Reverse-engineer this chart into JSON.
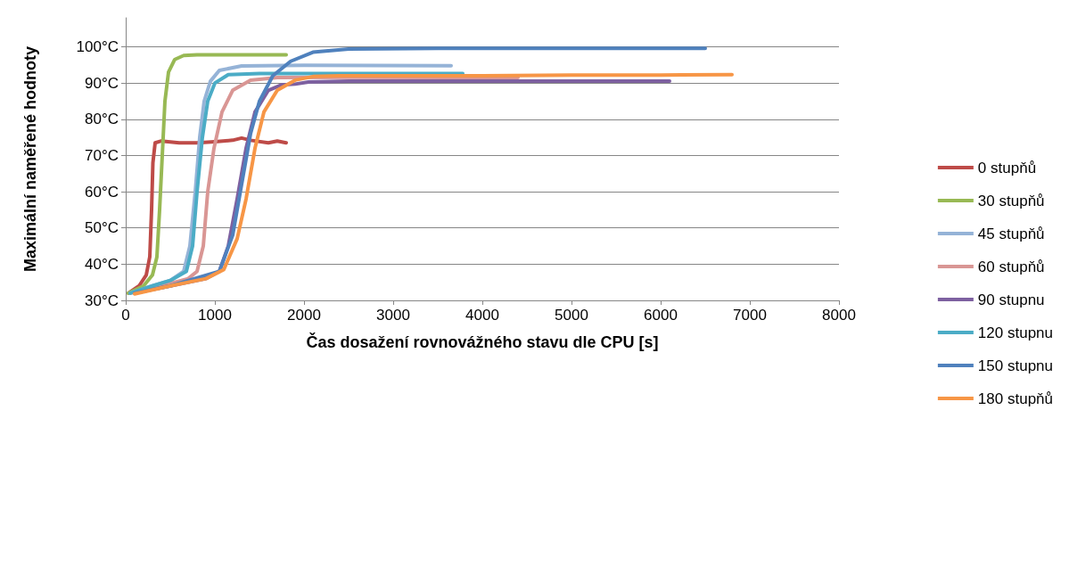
{
  "chart_data": {
    "type": "line",
    "xlabel": "Čas dosažení rovnovážného stavu dle CPU [s]",
    "ylabel": "Maximální naměřené hodnoty",
    "xlim": [
      0,
      8000
    ],
    "xticks": [
      0,
      1000,
      2000,
      3000,
      4000,
      5000,
      6000,
      7000,
      8000
    ],
    "ylim": [
      30,
      108
    ],
    "yticks": [
      {
        "value": 30,
        "label": "30°C"
      },
      {
        "value": 40,
        "label": "40°C"
      },
      {
        "value": 50,
        "label": "50°C"
      },
      {
        "value": 60,
        "label": "60°C"
      },
      {
        "value": 70,
        "label": "70°C"
      },
      {
        "value": 80,
        "label": "80°C"
      },
      {
        "value": 90,
        "label": "90°C"
      },
      {
        "value": 100,
        "label": "100°C"
      }
    ],
    "grid": "y",
    "legend": "right",
    "marker": "none",
    "line_style": "solid",
    "series": [
      {
        "name": "0 stupňů",
        "color": "#be4b48",
        "x": [
          30,
          150,
          230,
          270,
          290,
          305,
          330,
          400,
          600,
          800,
          1000,
          1200,
          1300,
          1400,
          1600,
          1700,
          1800
        ],
        "values": [
          32,
          34,
          37,
          42,
          55,
          68,
          73.5,
          74,
          73.5,
          73.5,
          73.8,
          74.2,
          74.8,
          74.2,
          73.5,
          74,
          73.5
        ]
      },
      {
        "name": "30 stupňů",
        "color": "#98b954",
        "x": [
          30,
          200,
          300,
          350,
          380,
          410,
          440,
          480,
          550,
          650,
          800,
          1800
        ],
        "values": [
          32,
          34,
          37,
          42,
          55,
          70,
          85,
          93,
          96.5,
          97.6,
          97.8,
          97.8
        ]
      },
      {
        "name": "45 stupňů",
        "color": "#95b3d7",
        "x": [
          50,
          300,
          500,
          650,
          720,
          780,
          830,
          880,
          950,
          1050,
          1300,
          2000,
          3650
        ],
        "values": [
          32,
          34,
          35.5,
          38,
          45,
          60,
          75,
          85,
          90.5,
          93.5,
          94.7,
          94.9,
          94.8
        ]
      },
      {
        "name": "60 stupňů",
        "color": "#d99694",
        "x": [
          50,
          400,
          700,
          800,
          870,
          920,
          990,
          1080,
          1200,
          1400,
          1700,
          2500,
          4400
        ],
        "values": [
          32,
          34,
          36,
          38,
          45,
          60,
          72,
          82,
          88,
          90.8,
          91.5,
          91.6,
          91.5
        ]
      },
      {
        "name": "90 stupnu",
        "color": "#7d60a0",
        "x": [
          100,
          500,
          900,
          1050,
          1150,
          1250,
          1350,
          1450,
          1600,
          1750,
          1900,
          2050,
          2500,
          6100
        ],
        "values": [
          32,
          34,
          36,
          38,
          45,
          58,
          72,
          82,
          88,
          89.5,
          89.7,
          90.3,
          90.5,
          90.5
        ]
      },
      {
        "name": "120 stupnu",
        "color": "#4bacc6",
        "x": [
          50,
          300,
          500,
          680,
          750,
          800,
          860,
          920,
          1000,
          1150,
          1500,
          3780
        ],
        "values": [
          32,
          34,
          35.5,
          38,
          45,
          60,
          75,
          85,
          90,
          92.3,
          92.6,
          92.6
        ]
      },
      {
        "name": "150 stupnu",
        "color": "#4f81bd",
        "x": [
          100,
          500,
          1050,
          1200,
          1300,
          1400,
          1500,
          1650,
          1850,
          2100,
          2500,
          3500,
          6500
        ],
        "values": [
          32,
          34,
          38,
          48,
          62,
          76,
          85,
          92,
          96,
          98.5,
          99.4,
          99.6,
          99.6
        ]
      },
      {
        "name": "180 stupňů",
        "color": "#f79646",
        "x": [
          100,
          500,
          900,
          1100,
          1250,
          1350,
          1450,
          1550,
          1700,
          1900,
          2100,
          2400,
          4000,
          5000,
          6000,
          6800
        ],
        "values": [
          31.8,
          34,
          36,
          38.5,
          47,
          58,
          72,
          82,
          88,
          90.8,
          91.8,
          92,
          92,
          92.2,
          92.2,
          92.3
        ]
      }
    ]
  }
}
